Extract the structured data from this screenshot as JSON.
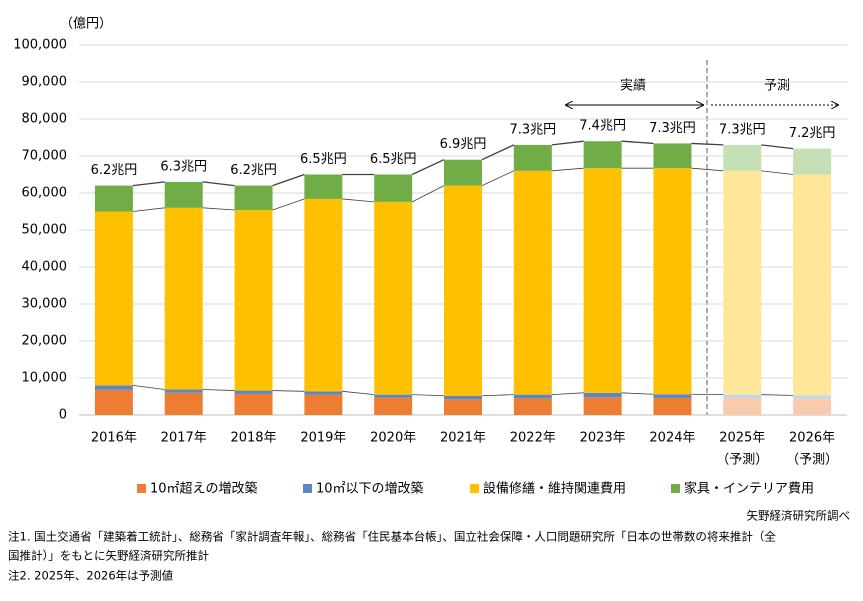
{
  "chart_data": {
    "type": "stacked_bar",
    "y_unit": "（億円）",
    "categories": [
      "2016年",
      "2017年",
      "2018年",
      "2019年",
      "2020年",
      "2021年",
      "2022年",
      "2023年",
      "2024年",
      "2025年",
      "2026年"
    ],
    "category_sublabels": [
      null,
      null,
      null,
      null,
      null,
      null,
      null,
      null,
      null,
      "（予測）",
      "（予測）"
    ],
    "forecast_start": 9,
    "series": [
      {
        "name": "10㎡超えの増改築",
        "color": "#ed7d31",
        "forecast_color": "#f8cbad",
        "values": [
          6800,
          6000,
          5700,
          5500,
          4700,
          4300,
          4500,
          4800,
          4600,
          4600,
          4400
        ]
      },
      {
        "name": "10㎡以下の増改築",
        "color": "#5b87c5",
        "forecast_color": "#bdd7ee",
        "values": [
          1200,
          900,
          900,
          900,
          800,
          900,
          1000,
          1200,
          1000,
          900,
          900
        ]
      },
      {
        "name": "設備修繕・維持関連費用",
        "color": "#ffc000",
        "forecast_color": "#ffe699",
        "values": [
          47000,
          49100,
          48800,
          52000,
          52100,
          56800,
          60500,
          60700,
          61100,
          60500,
          59700
        ]
      },
      {
        "name": "家具・インテリア費用",
        "color": "#70ad47",
        "forecast_color": "#c5e0b4",
        "values": [
          7000,
          7000,
          6600,
          6600,
          7400,
          7000,
          7000,
          7300,
          6700,
          7000,
          7000
        ]
      }
    ],
    "total_labels": [
      "6.2兆円",
      "6.3兆円",
      "6.2兆円",
      "6.5兆円",
      "6.5兆円",
      "6.9兆円",
      "7.3兆円",
      "7.4兆円",
      "7.3兆円",
      "7.3兆円",
      "7.2兆円"
    ],
    "period_labels": {
      "actual": "実績",
      "forecast": "予測"
    },
    "ylim": [
      0,
      100000
    ],
    "yticks": [
      0,
      {
        "value": 10000,
        "label": "10,000"
      },
      {
        "value": 20000,
        "label": "20,000"
      },
      {
        "value": 30000,
        "label": "30,000"
      },
      {
        "value": 40000,
        "label": "40,000"
      },
      {
        "value": 50000,
        "label": "50,000"
      },
      {
        "value": 60000,
        "label": "60,000"
      },
      {
        "value": 70000,
        "label": "70,000"
      },
      {
        "value": 80000,
        "label": "80,000"
      },
      {
        "value": 90000,
        "label": "90,000"
      },
      {
        "value": 100000,
        "label": "100,000"
      }
    ],
    "grid": true,
    "source": "矢野経済研究所調べ",
    "notes": [
      "注1.  国土交通省「建築着工統計」、総務省「家計調査年報」、総務省「住民基本台帳」、国立社会保障・人口問題研究所「日本の世帯数の将来推計（全",
      "国推計）」をもとに矢野経済研究所推計",
      "注2.  2025年、2026年は予測値"
    ]
  }
}
